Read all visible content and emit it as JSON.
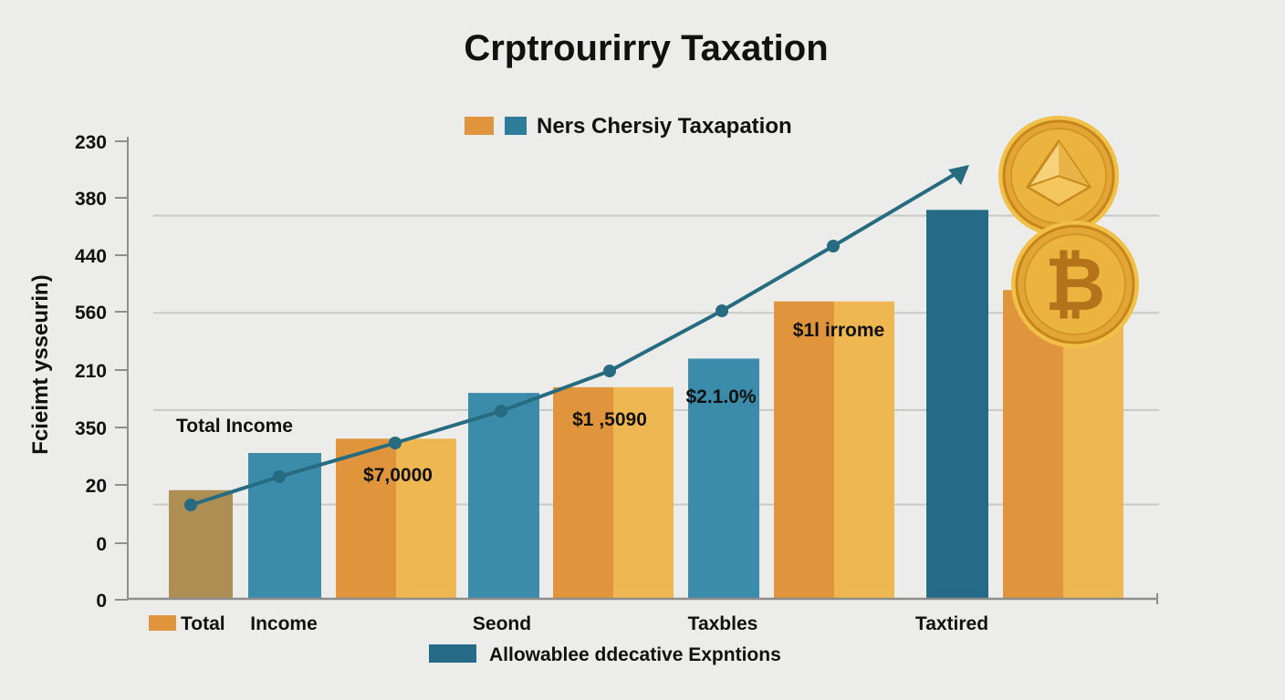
{
  "title": "Crptrourirry Taxation",
  "legend_top": {
    "label": "Ners Chersiy Taxapation",
    "swatches": [
      "#e0953c",
      "#2d7d9a"
    ]
  },
  "colors": {
    "orange": "#e0953c",
    "orange_light": "#efb752",
    "teal": "#3a8caa",
    "teal_dark": "#256b87",
    "olive": "#ad8f54",
    "line": "#266b80",
    "grid": "#c9c9c5",
    "axis": "#8e8e8e",
    "coin": "#e3a533",
    "coin_dark": "#c6861c"
  },
  "icons": [
    "ethereum-coin-icon",
    "bitcoin-coin-icon",
    "trend-arrow-icon"
  ],
  "chart_data": {
    "type": "bar",
    "title": "Crptrourirry Taxation",
    "ylabel": "Fcieimt ysseurin)",
    "xlabel": "",
    "y_tick_labels": [
      "230",
      "380",
      "440",
      "560",
      "210",
      "350",
      "20",
      "0",
      "0"
    ],
    "y_tick_positions": [
      9,
      8,
      7,
      6,
      5,
      4,
      3,
      2,
      1
    ],
    "ylim": [
      0,
      9
    ],
    "grid": "horizontal",
    "bars": [
      {
        "name": "bar-1",
        "value": 1.9,
        "color": "olive"
      },
      {
        "name": "bar-2",
        "value": 2.55,
        "color": "teal"
      },
      {
        "name": "bar-3",
        "value": 2.8,
        "color": "orange-split"
      },
      {
        "name": "bar-4",
        "value": 3.6,
        "color": "teal"
      },
      {
        "name": "bar-5",
        "value": 3.7,
        "color": "orange-split"
      },
      {
        "name": "bar-6",
        "value": 4.2,
        "color": "teal"
      },
      {
        "name": "bar-7",
        "value": 5.2,
        "color": "orange-split"
      },
      {
        "name": "bar-8",
        "value": 6.8,
        "color": "teal_dark"
      },
      {
        "name": "bar-9",
        "value": 5.4,
        "color": "orange-split"
      }
    ],
    "trend_line": {
      "points": [
        [
          1,
          2.65
        ],
        [
          2,
          3.15
        ],
        [
          3,
          3.65
        ],
        [
          4,
          4.2
        ],
        [
          5,
          4.9
        ],
        [
          6,
          5.95
        ],
        [
          7,
          6.9
        ]
      ],
      "arrow_to": [
        8.1,
        8.55
      ]
    },
    "annotations": [
      {
        "text": "Total Income",
        "x": 1.5,
        "y": 4.0
      },
      {
        "text": "$7,0000",
        "x": 3.0,
        "y": 3.15
      },
      {
        "text": "$1 ,5090",
        "x": 4.9,
        "y": 4.0
      },
      {
        "text": "$2.1.0%",
        "x": 6.1,
        "y": 4.45
      },
      {
        "text": "$1l irrome",
        "x": 7.5,
        "y": 5.5
      }
    ],
    "x_labels": [
      {
        "text": "Total",
        "x": 0.7,
        "has_swatch": true
      },
      {
        "text": "Income",
        "x": 1.8
      },
      {
        "text": "Seond",
        "x": 4.55
      },
      {
        "text": "Taxbles",
        "x": 6.1
      },
      {
        "text": "Taxtired",
        "x": 8.0
      }
    ],
    "legend_bottom": {
      "label": "Allowablee ddecative Expntions",
      "color": "teal_dark"
    }
  }
}
